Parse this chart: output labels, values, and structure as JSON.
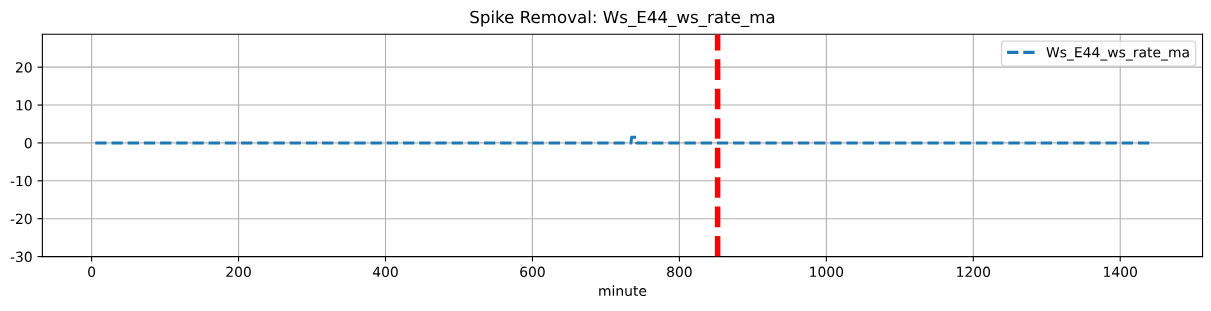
{
  "chart_data": {
    "type": "line",
    "title": "Spike Removal: Ws_E44_ws_rate_ma",
    "xlabel": "minute",
    "series": [
      {
        "name": "Ws_E44_ws_rate_ma",
        "color": "#1f77b4",
        "line_style": "dashed",
        "x": [
          5,
          100,
          200,
          300,
          400,
          500,
          600,
          700,
          734,
          735,
          741,
          742,
          800,
          900,
          1000,
          1100,
          1200,
          1300,
          1400,
          1440
        ],
        "values": [
          0,
          0,
          0,
          0,
          0,
          0,
          0,
          0,
          0,
          1.5,
          1.5,
          0,
          0,
          0,
          0,
          0,
          0,
          0,
          0,
          0
        ]
      }
    ],
    "ref_lines": [
      {
        "axis": "x",
        "value": 852,
        "color": "#ff0000",
        "line_style": "dashed"
      }
    ],
    "xlim": [
      -67,
      1512
    ],
    "xticks": [
      0,
      200,
      400,
      600,
      800,
      1000,
      1200,
      1400
    ],
    "ylim": [
      -30,
      28.7
    ],
    "yticks": [
      -30,
      -20,
      -10,
      0,
      10,
      20
    ],
    "grid": true,
    "legend": "top right"
  }
}
